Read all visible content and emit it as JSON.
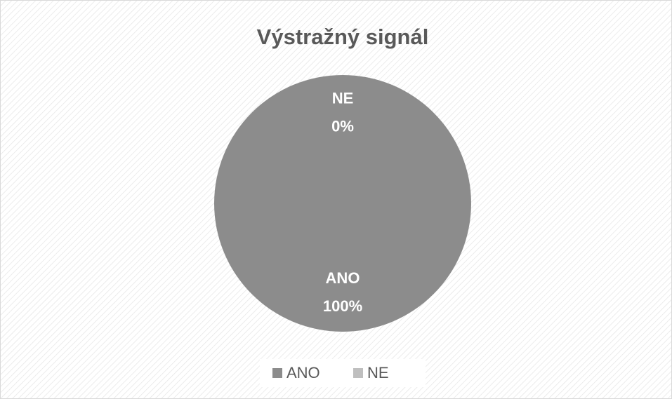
{
  "chart_data": {
    "type": "pie",
    "title": "Výstražný signál",
    "categories": [
      "ANO",
      "NE"
    ],
    "values": [
      100,
      0
    ],
    "value_labels": [
      "100%",
      "0%"
    ],
    "colors": [
      "#8c8c8c",
      "#bfbfbf"
    ],
    "legend": "bottom"
  }
}
